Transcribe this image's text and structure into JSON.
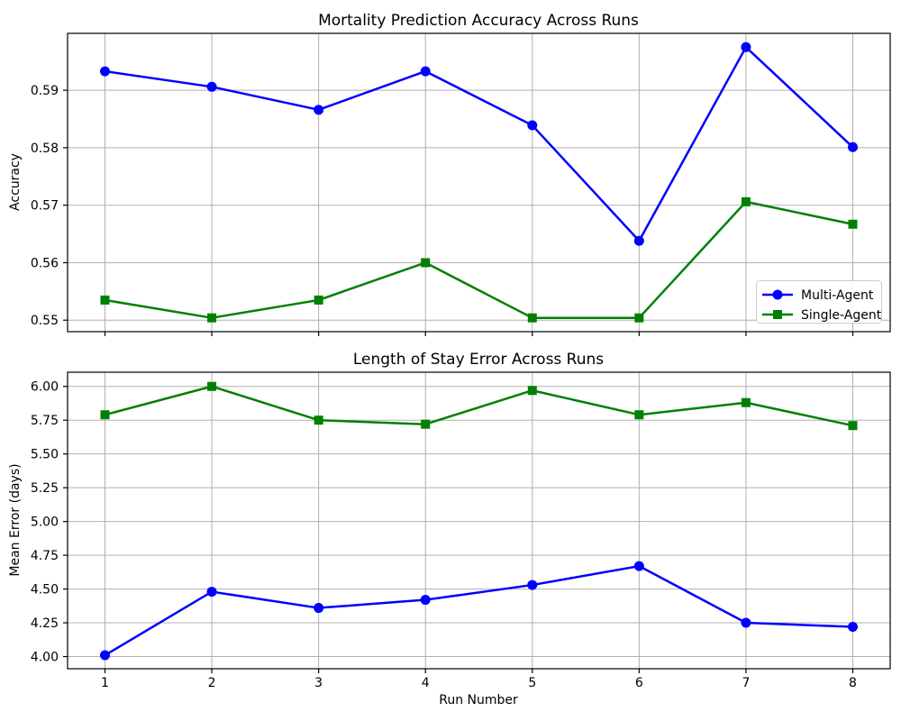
{
  "colors": {
    "multi_agent": "#0000ff",
    "single_agent": "#008000",
    "grid": "#b0b0b0",
    "axis": "#000000",
    "background": "#ffffff",
    "legend_border": "#cccccc"
  },
  "legend": {
    "position": "lower right of top chart",
    "items": [
      {
        "label": "Multi-Agent",
        "color": "#0000ff",
        "marker": "circle"
      },
      {
        "label": "Single-Agent",
        "color": "#008000",
        "marker": "square"
      }
    ]
  },
  "chart_data": [
    {
      "type": "line",
      "title": "Mortality Prediction Accuracy Across Runs",
      "xlabel": "",
      "ylabel": "Accuracy",
      "x": [
        1,
        2,
        3,
        4,
        5,
        6,
        7,
        8
      ],
      "series": [
        {
          "name": "Multi-Agent",
          "color": "#0000ff",
          "marker": "circle",
          "values": [
            0.5933,
            0.5906,
            0.5866,
            0.5933,
            0.5839,
            0.5638,
            0.5975,
            0.5801
          ]
        },
        {
          "name": "Single-Agent",
          "color": "#008000",
          "marker": "square",
          "values": [
            0.5535,
            0.5504,
            0.5535,
            0.56,
            0.5504,
            0.5504,
            0.5706,
            0.5667
          ]
        }
      ],
      "xlim": [
        0.65,
        8.35
      ],
      "ylim": [
        0.548,
        0.5999
      ],
      "xticks": [
        1,
        2,
        3,
        4,
        5,
        6,
        7,
        8
      ],
      "yticks": [
        0.55,
        0.56,
        0.57,
        0.58,
        0.59
      ],
      "ytick_decimals": 2,
      "show_xtick_labels": false,
      "grid": true,
      "legend": true
    },
    {
      "type": "line",
      "title": "Length of Stay Error Across Runs",
      "xlabel": "Run Number",
      "ylabel": "Mean Error (days)",
      "x": [
        1,
        2,
        3,
        4,
        5,
        6,
        7,
        8
      ],
      "series": [
        {
          "name": "Multi-Agent",
          "color": "#0000ff",
          "marker": "circle",
          "values": [
            4.01,
            4.48,
            4.36,
            4.42,
            4.53,
            4.67,
            4.25,
            4.22
          ]
        },
        {
          "name": "Single-Agent",
          "color": "#008000",
          "marker": "square",
          "values": [
            5.79,
            6.0,
            5.75,
            5.72,
            5.97,
            5.79,
            5.88,
            5.71
          ]
        }
      ],
      "xlim": [
        0.65,
        8.35
      ],
      "ylim": [
        3.91,
        6.105
      ],
      "xticks": [
        1,
        2,
        3,
        4,
        5,
        6,
        7,
        8
      ],
      "yticks": [
        4.0,
        4.25,
        4.5,
        4.75,
        5.0,
        5.25,
        5.5,
        5.75,
        6.0
      ],
      "ytick_decimals": 2,
      "show_xtick_labels": true,
      "grid": true,
      "legend": false
    }
  ]
}
